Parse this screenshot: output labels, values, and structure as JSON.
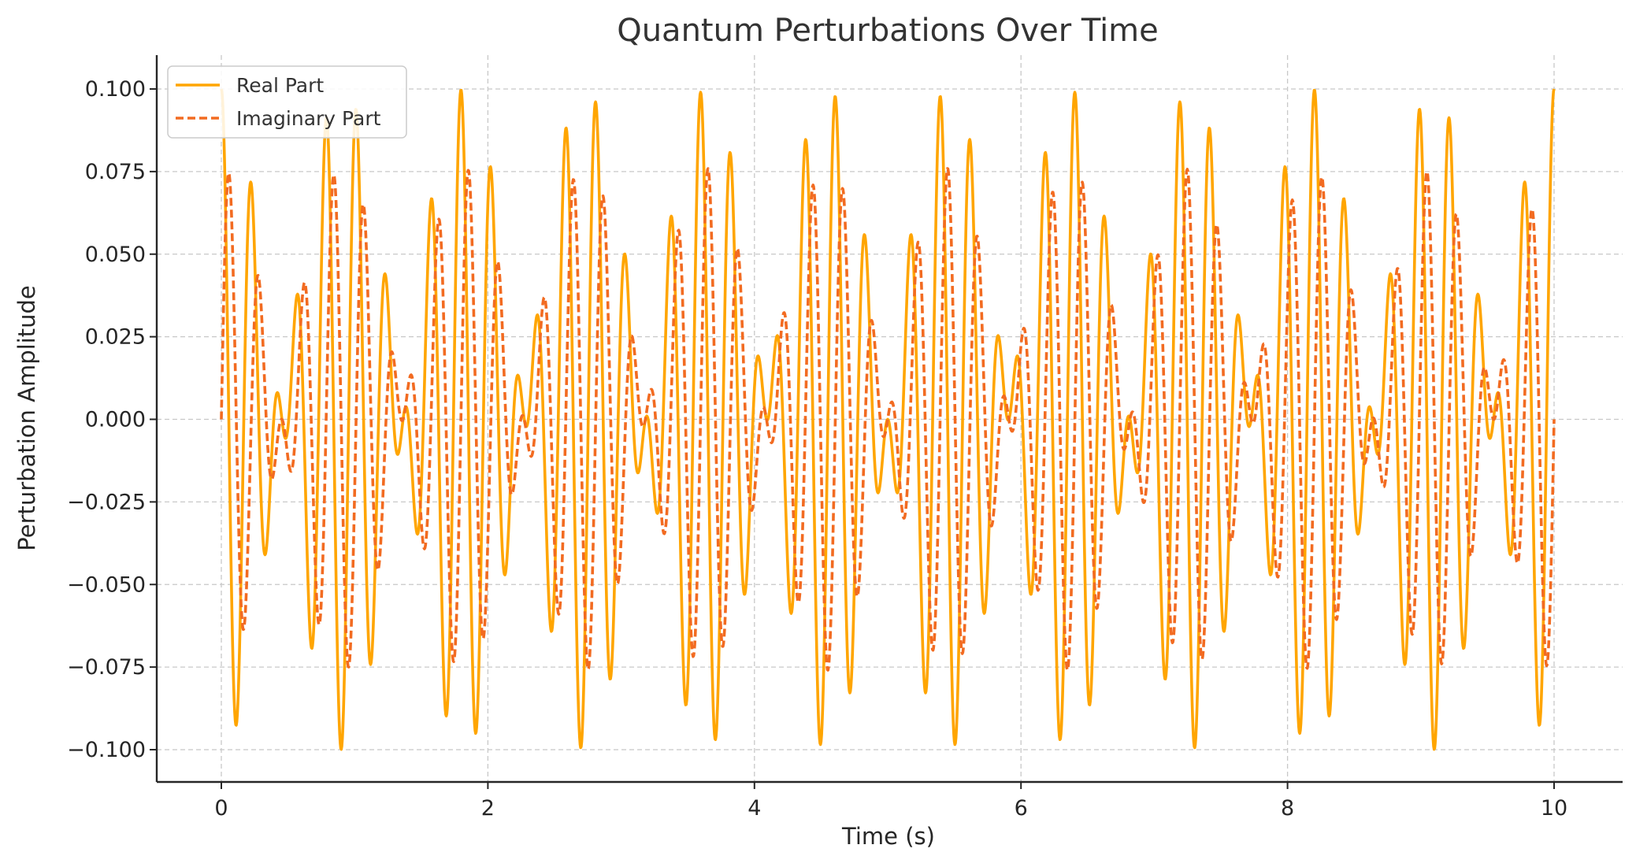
{
  "chart_data": {
    "type": "line",
    "title": "Quantum Perturbations Over Time",
    "xlabel": "Time (s)",
    "ylabel": "Perturbation Amplitude",
    "xlim": [
      -0.5,
      10.5
    ],
    "ylim": [
      -0.11,
      0.11
    ],
    "xticks": [
      0,
      2,
      4,
      6,
      8,
      10
    ],
    "xtick_labels": [
      "0",
      "2",
      "4",
      "6",
      "8",
      "10"
    ],
    "yticks": [
      -0.1,
      -0.075,
      -0.05,
      -0.025,
      0.0,
      0.025,
      0.05,
      0.075,
      0.1
    ],
    "ytick_labels": [
      "−0.100",
      "−0.075",
      "−0.050",
      "−0.025",
      "0.000",
      "0.025",
      "0.050",
      "0.075",
      "0.100"
    ],
    "grid": true,
    "legend_position": "top-left",
    "x_range": [
      0,
      10
    ],
    "samples": 2500,
    "series": [
      {
        "name": "Real Part",
        "style": "solid",
        "color": "#FFA500",
        "model": "0.05*cos(2*pi*5*t) + 0.05*cos(2*pi*3.9*t)",
        "peak": 0.1
      },
      {
        "name": "Imaginary Part",
        "style": "dashed",
        "color": "#F26B21",
        "model": "0.05*sin(2*pi*5*t) + 0.05*sin(2*pi*3.9*t)",
        "peak": 0.076
      }
    ]
  }
}
